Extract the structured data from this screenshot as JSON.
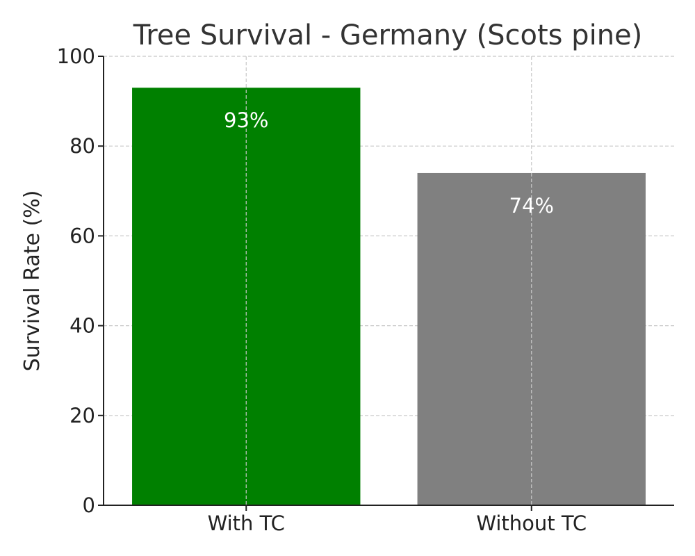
{
  "chart_data": {
    "type": "bar",
    "title": "Tree Survival - Germany (Scots pine)",
    "xlabel": "",
    "ylabel": "Survival Rate (%)",
    "categories": [
      "With TC",
      "Without TC"
    ],
    "values": [
      93,
      74
    ],
    "data_labels": [
      "93%",
      "74%"
    ],
    "colors": [
      "#008000",
      "#808080"
    ],
    "ylim": [
      0,
      100
    ],
    "yticks": [
      0,
      20,
      40,
      60,
      80,
      100
    ],
    "grid": true
  }
}
